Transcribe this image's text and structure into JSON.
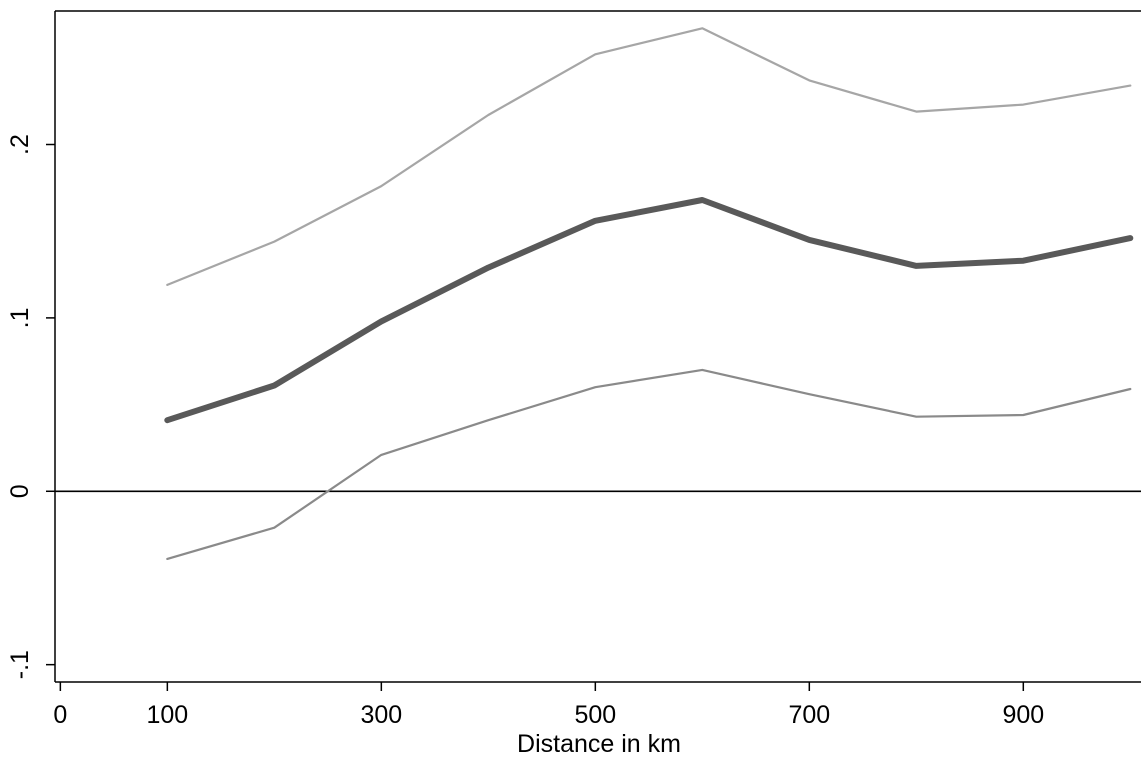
{
  "chart_data": {
    "type": "line",
    "title": "",
    "xlabel": "Distance in km",
    "ylabel": "",
    "xlim": [
      -5,
      1010
    ],
    "ylim": [
      -0.11,
      0.277
    ],
    "xticks": [
      {
        "value": 0,
        "label": "0"
      },
      {
        "value": 100,
        "label": "100"
      },
      {
        "value": 300,
        "label": "300"
      },
      {
        "value": 500,
        "label": "500"
      },
      {
        "value": 700,
        "label": "700"
      },
      {
        "value": 900,
        "label": "900"
      }
    ],
    "yticks": [
      {
        "value": -0.1,
        "label": "-.1"
      },
      {
        "value": 0,
        "label": "0"
      },
      {
        "value": 0.1,
        "label": ".1"
      },
      {
        "value": 0.2,
        "label": ".2"
      }
    ],
    "reference_line_y": 0,
    "grid": false,
    "legend": "none",
    "x": [
      100,
      200,
      300,
      400,
      500,
      600,
      700,
      800,
      900,
      1000
    ],
    "series": [
      {
        "role": "upper",
        "color": "#a6a6a6",
        "values": [
          0.119,
          0.144,
          0.176,
          0.217,
          0.252,
          0.267,
          0.237,
          0.219,
          0.223,
          0.234
        ]
      },
      {
        "role": "estimate",
        "color": "#595959",
        "values": [
          0.041,
          0.061,
          0.098,
          0.129,
          0.156,
          0.168,
          0.145,
          0.13,
          0.133,
          0.146
        ]
      },
      {
        "role": "lower",
        "color": "#8a8a8a",
        "values": [
          -0.039,
          -0.021,
          0.021,
          0.041,
          0.06,
          0.07,
          0.056,
          0.043,
          0.044,
          0.059
        ]
      }
    ]
  }
}
